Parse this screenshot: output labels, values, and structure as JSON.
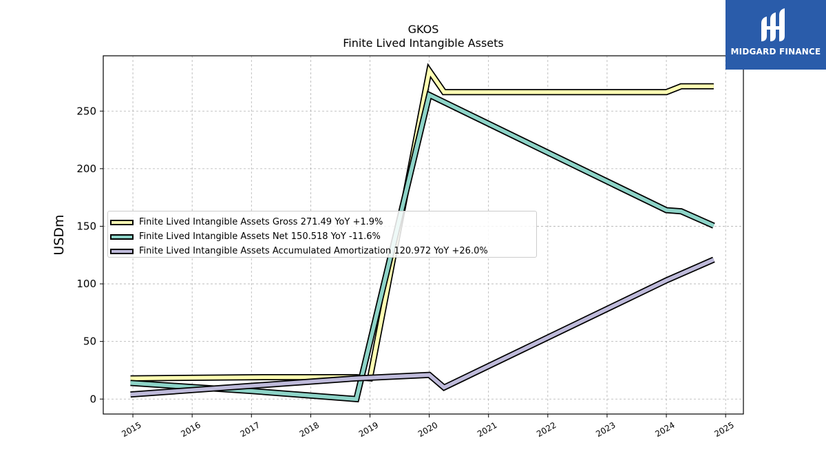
{
  "chart_data": {
    "type": "line",
    "title": "GKOS",
    "subtitle": "Finite Lived Intangible Assets",
    "ylabel": "USDm",
    "xlabel": "",
    "ylim": [
      -13,
      298
    ],
    "xlim": [
      2014.5,
      2025.3
    ],
    "x_ticks": [
      "2015",
      "2016",
      "2017",
      "2018",
      "2019",
      "2020",
      "2021",
      "2022",
      "2023",
      "2024",
      "2025"
    ],
    "y_ticks": [
      "0",
      "50",
      "100",
      "150",
      "200",
      "250"
    ],
    "grid": true,
    "legend_position": "center-left",
    "series": [
      {
        "name": "Finite Lived Intangible Assets Gross  271.49 YoY +1.9%",
        "color": "#ffffb3",
        "x": [
          2014.96,
          2017.25,
          2018.77,
          2019.0,
          2020.0,
          2020.25,
          2024.0,
          2024.25,
          2024.8
        ],
        "y": [
          18,
          19,
          19,
          18,
          285,
          266.5,
          266.5,
          271.5,
          271.5
        ]
      },
      {
        "name": "Finite Lived Intangible Assets Net  150.518 YoY -11.6%",
        "color": "#8dd3c7",
        "x": [
          2014.96,
          2017.0,
          2018.77,
          2020.0,
          2024.0,
          2024.25,
          2024.8
        ],
        "y": [
          14,
          7,
          0,
          264,
          164,
          163,
          150.5
        ]
      },
      {
        "name": "Finite Lived Intangible Assets Accumulated Amortization  120.972 YoY +26.0%",
        "color": "#bebada",
        "x": [
          2014.96,
          2018.77,
          2020.0,
          2020.25,
          2024.0,
          2024.8
        ],
        "y": [
          4,
          18,
          21,
          10,
          103,
          121
        ]
      }
    ]
  },
  "legend": {
    "gross": "Finite Lived Intangible Assets Gross  271.49 YoY +1.9%",
    "net": "Finite Lived Intangible Assets Net  150.518 YoY -11.6%",
    "amort": "Finite Lived Intangible Assets Accumulated Amortization  120.972 YoY +26.0%"
  },
  "logo": {
    "text": "MIDGARD FINANCE",
    "color": "#2a5caa"
  }
}
